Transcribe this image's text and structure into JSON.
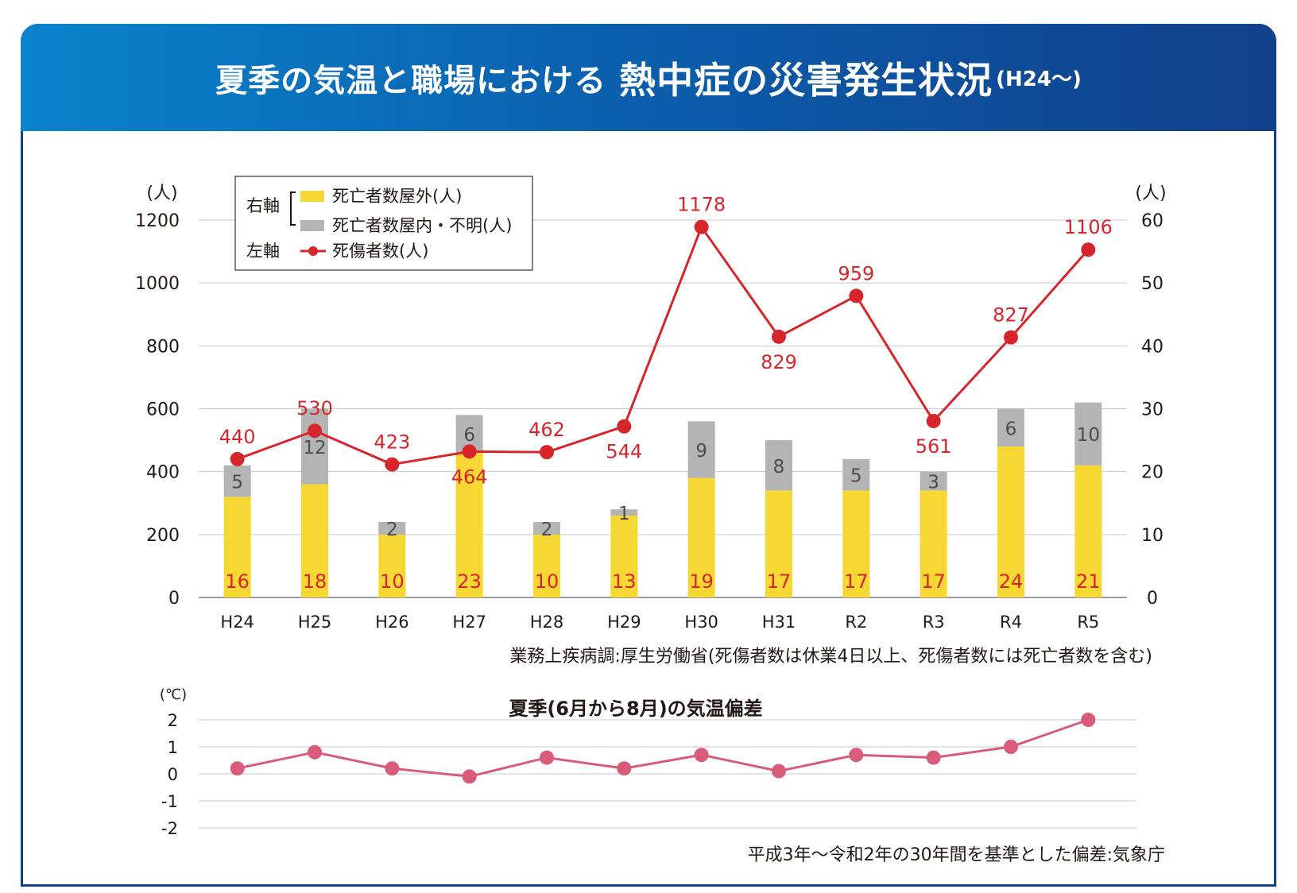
{
  "title": {
    "main": "夏季の気温と職場における",
    "accent": "熱中症の災害発生状況",
    "sub": "(H24〜)"
  },
  "colors": {
    "header_start": "#0a83cc",
    "header_end": "#12408a",
    "outdoor_bar": "#f7d733",
    "indoor_bar": "#b4b4b4",
    "casualty_line": "#d7262b",
    "temp_line": "#d95b7a",
    "label_red": "#d7262b"
  },
  "legend": {
    "right_axis_label": "右軸",
    "left_axis_label": "左軸",
    "outdoor": "死亡者数屋外(人)",
    "indoor": "死亡者数屋内・不明(人)",
    "casualties": "死傷者数(人)"
  },
  "source_main": "業務上疾病調:厚生労働省(死傷者数は休業4日以上、死傷者数には死亡者数を含む)",
  "source_temp": "平成3年〜令和2年の30年間を基準とした偏差:気象庁",
  "chart_data": [
    {
      "type": "bar",
      "categories": [
        "H24",
        "H25",
        "H26",
        "H27",
        "H28",
        "H29",
        "H30",
        "H31",
        "R2",
        "R3",
        "R4",
        "R5"
      ],
      "left_axis": {
        "unit": "(人)",
        "ylim": [
          0,
          1200
        ],
        "ticks": [
          0,
          200,
          400,
          600,
          800,
          1000,
          1200
        ]
      },
      "right_axis": {
        "unit": "(人)",
        "ylim": [
          0,
          60
        ],
        "ticks": [
          0,
          10,
          20,
          30,
          40,
          50,
          60
        ]
      },
      "series": [
        {
          "name": "死亡者数屋外(人)",
          "kind": "stacked-bar",
          "axis": "right",
          "values": [
            16,
            18,
            10,
            23,
            10,
            13,
            19,
            17,
            17,
            17,
            24,
            21
          ]
        },
        {
          "name": "死亡者数屋内・不明(人)",
          "kind": "stacked-bar",
          "axis": "right",
          "values": [
            5,
            12,
            2,
            6,
            2,
            1,
            9,
            8,
            5,
            3,
            6,
            10
          ]
        },
        {
          "name": "死傷者数(人)",
          "kind": "line",
          "axis": "left",
          "values": [
            440,
            530,
            423,
            464,
            462,
            544,
            1178,
            829,
            959,
            561,
            827,
            1106
          ]
        }
      ],
      "grid": true,
      "legend_position": "top-left"
    },
    {
      "type": "line",
      "title": "夏季(6月から8月)の気温偏差",
      "ylabel": "(℃)",
      "ylim": [
        -2,
        2
      ],
      "ticks": [
        2,
        1,
        0,
        -1,
        -2
      ],
      "categories": [
        "H24",
        "H25",
        "H26",
        "H27",
        "H28",
        "H29",
        "H30",
        "H31",
        "R2",
        "R3",
        "R4",
        "R5"
      ],
      "values": [
        0.2,
        0.8,
        0.2,
        -0.1,
        0.6,
        0.2,
        0.7,
        0.1,
        0.7,
        0.6,
        1.0,
        2.0
      ],
      "grid": true
    }
  ]
}
